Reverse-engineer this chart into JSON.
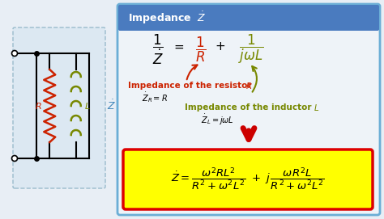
{
  "bg_color": "#e8eef5",
  "panel_bg": "#eef3f8",
  "panel_border": "#6baed6",
  "header_bg": "#4a7bbf",
  "header_text_color": "#ffffff",
  "red_color": "#cc2200",
  "green_color": "#778800",
  "arrow_color": "#cc0000",
  "yellow_bg": "#ffff00",
  "yellow_border": "#dd0000",
  "circuit_bg": "#dce8f2",
  "circuit_border": "#99bbcc",
  "black": "#000000",
  "dark_text": "#111111"
}
